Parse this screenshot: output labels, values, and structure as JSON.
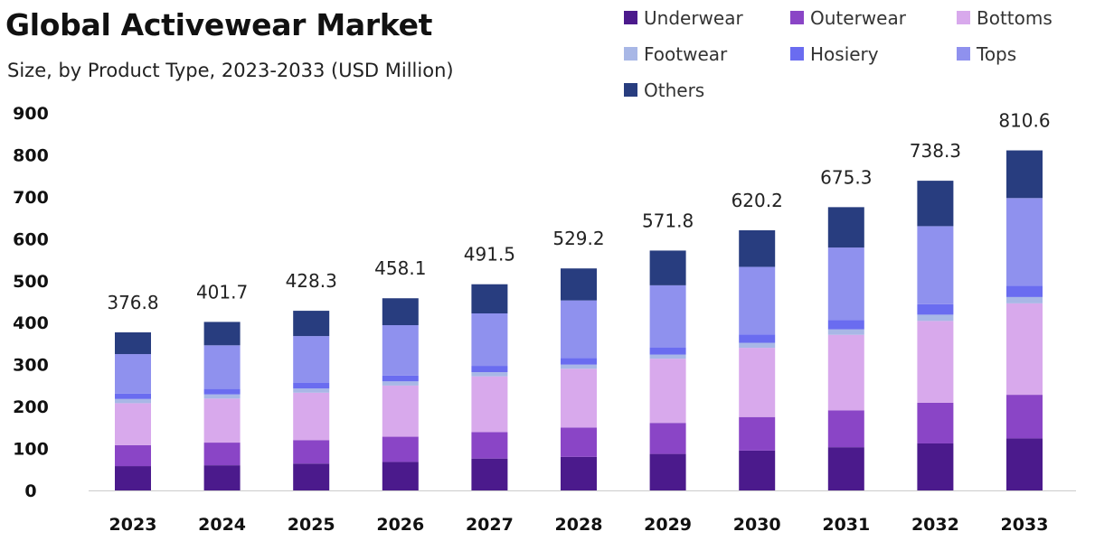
{
  "chart_data": {
    "type": "bar",
    "stacked": true,
    "title": "Global Activewear Market",
    "subtitle": "Size, by Product Type, 2023-2033 (USD Million)",
    "categories": [
      "2023",
      "2024",
      "2025",
      "2026",
      "2027",
      "2028",
      "2029",
      "2030",
      "2031",
      "2032",
      "2033"
    ],
    "ylim": [
      0,
      900
    ],
    "yticks": [
      0,
      100,
      200,
      300,
      400,
      500,
      600,
      700,
      800,
      900
    ],
    "grid": false,
    "legend_position": "top-right",
    "totals": [
      376.8,
      401.7,
      428.3,
      458.1,
      491.5,
      529.2,
      571.8,
      620.2,
      675.3,
      738.3,
      810.6
    ],
    "total_labels": [
      "376.8",
      "401.7",
      "428.3",
      "458.1",
      "491.5",
      "529.2",
      "571.8",
      "620.2",
      "675.3",
      "738.3",
      "810.6"
    ],
    "series": [
      {
        "name": "Underwear",
        "color": "#4b1a8c",
        "values": [
          58,
          60,
          64,
          68,
          76,
          80,
          87,
          95,
          103,
          112,
          124
        ]
      },
      {
        "name": "Outerwear",
        "color": "#8a45c6",
        "values": [
          50,
          54,
          56,
          60,
          63,
          70,
          74,
          80,
          88,
          97,
          104
        ]
      },
      {
        "name": "Bottoms",
        "color": "#d8a9ec",
        "values": [
          100,
          105,
          113,
          122,
          133,
          140,
          153,
          165,
          180,
          195,
          218
        ]
      },
      {
        "name": "Footwear",
        "color": "#a8b7e6",
        "values": [
          10,
          10,
          10,
          10,
          10,
          10,
          10,
          12,
          13,
          15,
          15
        ]
      },
      {
        "name": "Hosiery",
        "color": "#6a6cf0",
        "values": [
          13,
          13,
          14,
          14,
          15,
          16,
          17,
          20,
          22,
          25,
          27
        ]
      },
      {
        "name": "Tops",
        "color": "#8f91ee",
        "values": [
          94,
          104,
          111,
          120,
          125,
          137,
          148,
          161,
          173,
          186,
          209
        ]
      },
      {
        "name": "Others",
        "color": "#283d7f",
        "values": [
          51.8,
          55.7,
          60.3,
          64.1,
          69.5,
          76.2,
          82.8,
          87.2,
          96.3,
          108.3,
          113.6
        ]
      }
    ],
    "axis_line_color": "#cccccc"
  }
}
